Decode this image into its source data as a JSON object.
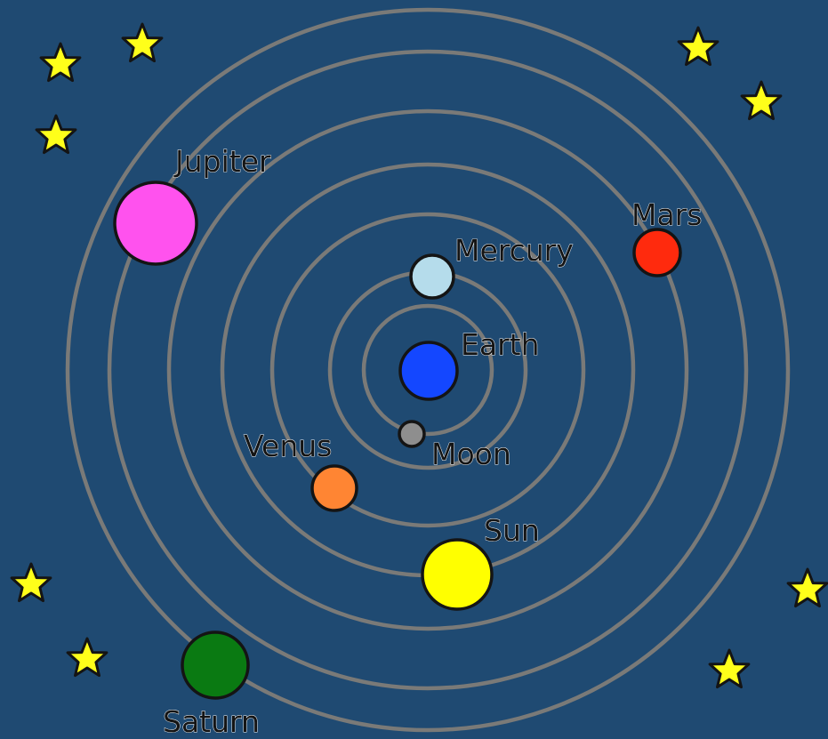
{
  "background_color": "#1f4a72",
  "orbit_color": "#7a7a78",
  "bodies": [
    {
      "label": "Earth",
      "color": "#1447ff"
    },
    {
      "label": "Moon",
      "color": "#8e8e8e"
    },
    {
      "label": "Mercury",
      "color": "#b5dceb"
    },
    {
      "label": "Venus",
      "color": "#ff8533"
    },
    {
      "label": "Sun",
      "color": "#ffff00"
    },
    {
      "label": "Mars",
      "color": "#ff2a0d"
    },
    {
      "label": "Jupiter",
      "color": "#ff52ee"
    },
    {
      "label": "Saturn",
      "color": "#0a7a12"
    }
  ],
  "star_icon": "star-icon",
  "star_color": "#ffff1a"
}
